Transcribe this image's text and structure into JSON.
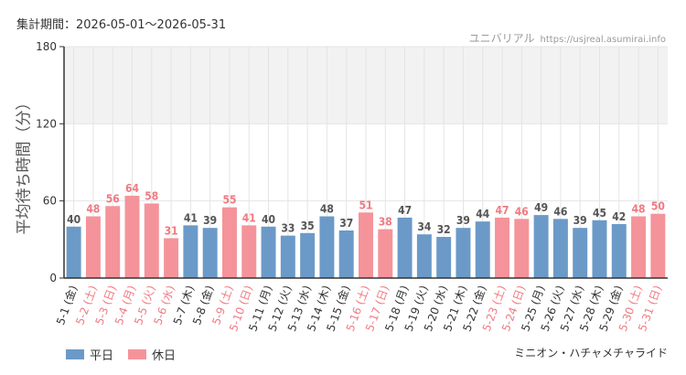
{
  "header": {
    "period": "集計期間：2026-05-01～2026-05-31",
    "site_name": "ユニバリアル",
    "site_url": "https://usjreal.asumirai.info"
  },
  "footer": {
    "attraction": "ミニオン・ハチャメチャライド"
  },
  "colors": {
    "weekday": "#6b9ac8",
    "holiday": "#f4949a",
    "weekday_label": "#555555",
    "holiday_label": "#f07a82",
    "band": "#f2f2f2",
    "grid": "#e4e4e4",
    "axis": "#333333"
  },
  "chart_data": {
    "type": "bar",
    "ylabel": "平均待ち時間（分）",
    "ylim": [
      0,
      180
    ],
    "yticks": [
      0,
      60,
      120,
      180
    ],
    "shaded_band": [
      120,
      180
    ],
    "grid": true,
    "legend": [
      {
        "key": "weekday",
        "label": "平日"
      },
      {
        "key": "holiday",
        "label": "休日"
      }
    ],
    "legend_position": "bottom-left",
    "categories": [
      "5-1 (金)",
      "5-2 (土)",
      "5-3 (日)",
      "5-4 (月)",
      "5-5 (火)",
      "5-6 (水)",
      "5-7 (木)",
      "5-8 (金)",
      "5-9 (土)",
      "5-10 (日)",
      "5-11 (月)",
      "5-12 (火)",
      "5-13 (水)",
      "5-14 (木)",
      "5-15 (金)",
      "5-16 (土)",
      "5-17 (日)",
      "5-18 (月)",
      "5-19 (火)",
      "5-20 (水)",
      "5-21 (木)",
      "5-22 (金)",
      "5-23 (土)",
      "5-24 (日)",
      "5-25 (月)",
      "5-26 (火)",
      "5-27 (水)",
      "5-28 (木)",
      "5-29 (金)",
      "5-30 (土)",
      "5-31 (日)"
    ],
    "values": [
      40,
      48,
      56,
      64,
      58,
      31,
      41,
      39,
      55,
      41,
      40,
      33,
      35,
      48,
      37,
      51,
      38,
      47,
      34,
      32,
      39,
      44,
      47,
      46,
      49,
      46,
      39,
      45,
      42,
      48,
      50
    ],
    "day_type": [
      "weekday",
      "holiday",
      "holiday",
      "holiday",
      "holiday",
      "holiday",
      "weekday",
      "weekday",
      "holiday",
      "holiday",
      "weekday",
      "weekday",
      "weekday",
      "weekday",
      "weekday",
      "holiday",
      "holiday",
      "weekday",
      "weekday",
      "weekday",
      "weekday",
      "weekday",
      "holiday",
      "holiday",
      "weekday",
      "weekday",
      "weekday",
      "weekday",
      "weekday",
      "holiday",
      "holiday"
    ]
  }
}
